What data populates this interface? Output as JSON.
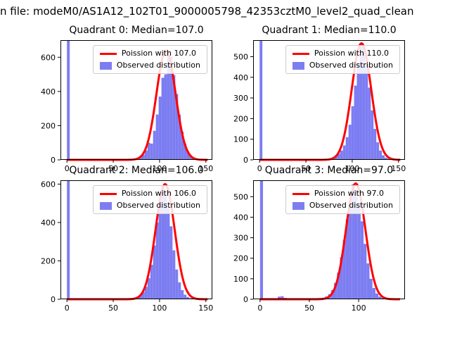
{
  "figure_title": "n file: modeM0/AS1A12_102T01_9000005798_42353cztM0_level2_quad_clean",
  "colors": {
    "hist_fill": "#7d7df2",
    "curve": "#ff0000",
    "axis": "#000000",
    "legend_border": "#cccccc"
  },
  "chart_data": [
    {
      "type": "bar",
      "subtype": "histogram-with-fit-line",
      "title": "Quadrant 0: Median=107.0",
      "median": 107.0,
      "legend": [
        "Poission with 107.0",
        "Observed distribution"
      ],
      "xlim": [
        -7,
        157
      ],
      "ylim": [
        0,
        700
      ],
      "x_ticks": [
        0,
        50,
        100,
        150
      ],
      "y_ticks": [
        0,
        200,
        400,
        600
      ],
      "bin_width": 3,
      "spike": {
        "x": 0,
        "height_exceeds_axis": true
      },
      "bins": [
        [
          63,
          1
        ],
        [
          66,
          2
        ],
        [
          69,
          4
        ],
        [
          72,
          6
        ],
        [
          75,
          10
        ],
        [
          78,
          18
        ],
        [
          81,
          30
        ],
        [
          84,
          55
        ],
        [
          87,
          100
        ],
        [
          90,
          95
        ],
        [
          93,
          170
        ],
        [
          96,
          265
        ],
        [
          99,
          370
        ],
        [
          102,
          480
        ],
        [
          105,
          500
        ],
        [
          108,
          630
        ],
        [
          111,
          605
        ],
        [
          114,
          495
        ],
        [
          117,
          385
        ],
        [
          120,
          265
        ],
        [
          123,
          165
        ],
        [
          126,
          95
        ],
        [
          129,
          50
        ],
        [
          132,
          27
        ],
        [
          135,
          12
        ],
        [
          138,
          6
        ],
        [
          141,
          3
        ],
        [
          144,
          2
        ],
        [
          147,
          1
        ]
      ],
      "fit": {
        "mu": 107.0,
        "sigma": 10.3,
        "amp": 640,
        "range": [
          0,
          152
        ]
      },
      "grid": false,
      "legend_position": "upper right"
    },
    {
      "type": "bar",
      "subtype": "histogram-with-fit-line",
      "title": "Quadrant 1: Median=110.0",
      "median": 110.0,
      "legend": [
        "Poission with 110.0",
        "Observed distribution"
      ],
      "xlim": [
        -7,
        157
      ],
      "ylim": [
        0,
        580
      ],
      "x_ticks": [
        0,
        50,
        100,
        150
      ],
      "y_ticks": [
        0,
        100,
        200,
        300,
        400,
        500
      ],
      "bin_width": 3,
      "spike": {
        "x": 0,
        "height_exceeds_axis": true
      },
      "bins": [
        [
          60,
          1
        ],
        [
          63,
          1
        ],
        [
          66,
          2
        ],
        [
          69,
          3
        ],
        [
          72,
          5
        ],
        [
          75,
          8
        ],
        [
          78,
          12
        ],
        [
          81,
          20
        ],
        [
          84,
          30
        ],
        [
          87,
          45
        ],
        [
          90,
          70
        ],
        [
          93,
          110
        ],
        [
          96,
          170
        ],
        [
          99,
          260
        ],
        [
          102,
          360
        ],
        [
          105,
          470
        ],
        [
          108,
          560
        ],
        [
          111,
          545
        ],
        [
          114,
          460
        ],
        [
          117,
          350
        ],
        [
          120,
          240
        ],
        [
          123,
          150
        ],
        [
          126,
          85
        ],
        [
          129,
          45
        ],
        [
          132,
          22
        ],
        [
          135,
          10
        ],
        [
          138,
          5
        ],
        [
          141,
          2
        ],
        [
          144,
          1
        ]
      ],
      "fit": {
        "mu": 110.0,
        "sigma": 10.5,
        "amp": 565,
        "range": [
          0,
          152
        ]
      },
      "grid": false,
      "legend_position": "upper right"
    },
    {
      "type": "bar",
      "subtype": "histogram-with-fit-line",
      "title": "Quadrant 2: Median=106.0",
      "median": 106.0,
      "legend": [
        "Poission with 106.0",
        "Observed distribution"
      ],
      "xlim": [
        -7,
        157
      ],
      "ylim": [
        0,
        620
      ],
      "x_ticks": [
        0,
        50,
        100,
        150
      ],
      "y_ticks": [
        0,
        200,
        400,
        600
      ],
      "bin_width": 3,
      "spike": {
        "x": 0,
        "height_exceeds_axis": true
      },
      "bins": [
        [
          60,
          1
        ],
        [
          63,
          2
        ],
        [
          66,
          3
        ],
        [
          69,
          5
        ],
        [
          72,
          8
        ],
        [
          75,
          13
        ],
        [
          78,
          22
        ],
        [
          81,
          38
        ],
        [
          84,
          65
        ],
        [
          87,
          110
        ],
        [
          90,
          180
        ],
        [
          93,
          280
        ],
        [
          96,
          400
        ],
        [
          99,
          500
        ],
        [
          102,
          590
        ],
        [
          105,
          545
        ],
        [
          108,
          480
        ],
        [
          111,
          380
        ],
        [
          114,
          255
        ],
        [
          117,
          155
        ],
        [
          120,
          88
        ],
        [
          123,
          48
        ],
        [
          126,
          24
        ],
        [
          129,
          12
        ],
        [
          132,
          6
        ],
        [
          135,
          3
        ],
        [
          138,
          1
        ]
      ],
      "fit": {
        "mu": 106.0,
        "sigma": 10.3,
        "amp": 600,
        "range": [
          0,
          152
        ]
      },
      "grid": false,
      "legend_position": "upper right"
    },
    {
      "type": "bar",
      "subtype": "histogram-with-fit-line",
      "title": "Quadrant 3: Median=97.0",
      "median": 97.0,
      "legend": [
        "Poission with 97.0",
        "Observed distribution"
      ],
      "xlim": [
        -7,
        147
      ],
      "ylim": [
        0,
        580
      ],
      "x_ticks": [
        0,
        50,
        100
      ],
      "y_ticks": [
        0,
        100,
        200,
        300,
        400,
        500
      ],
      "bin_width": 3,
      "spike": {
        "x": 0,
        "height_exceeds_axis": true
      },
      "bins": [
        [
          15,
          5
        ],
        [
          18,
          13
        ],
        [
          21,
          15
        ],
        [
          24,
          7
        ],
        [
          54,
          2
        ],
        [
          57,
          3
        ],
        [
          60,
          5
        ],
        [
          63,
          8
        ],
        [
          66,
          14
        ],
        [
          69,
          25
        ],
        [
          72,
          45
        ],
        [
          75,
          80
        ],
        [
          78,
          130
        ],
        [
          81,
          205
        ],
        [
          84,
          290
        ],
        [
          87,
          390
        ],
        [
          90,
          480
        ],
        [
          93,
          560
        ],
        [
          96,
          530
        ],
        [
          99,
          470
        ],
        [
          102,
          380
        ],
        [
          105,
          270
        ],
        [
          108,
          175
        ],
        [
          111,
          100
        ],
        [
          114,
          55
        ],
        [
          117,
          28
        ],
        [
          120,
          13
        ],
        [
          123,
          6
        ],
        [
          126,
          3
        ],
        [
          129,
          1
        ]
      ],
      "fit": {
        "mu": 97.0,
        "sigma": 9.8,
        "amp": 565,
        "range": [
          0,
          142
        ]
      },
      "grid": false,
      "legend_position": "upper right"
    }
  ]
}
